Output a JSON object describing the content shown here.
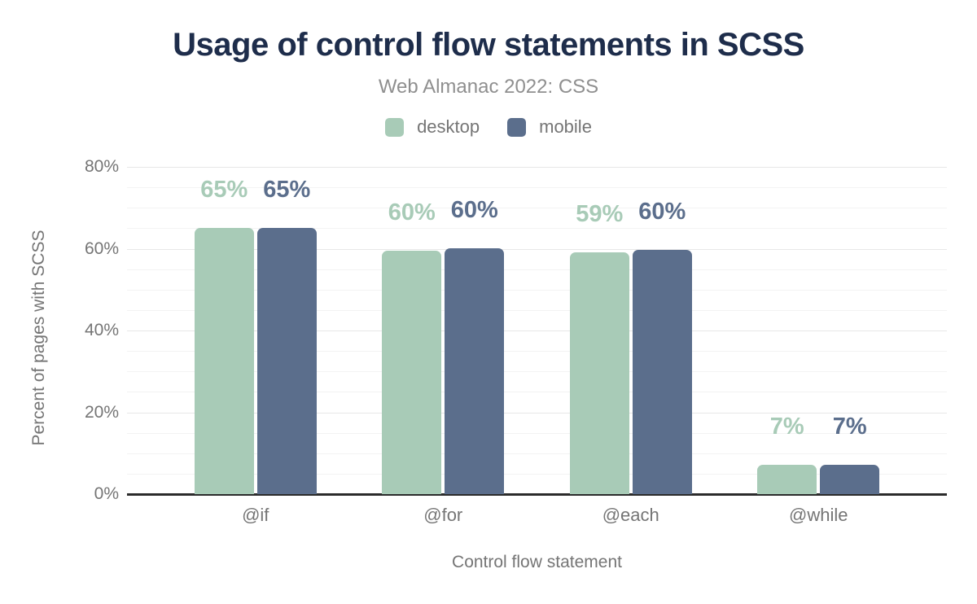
{
  "title": "Usage of control flow statements in SCSS",
  "subtitle": "Web Almanac 2022: CSS",
  "colors": {
    "desktop": "#a8cbb7",
    "mobile": "#5b6e8c",
    "title_text": "#1e2d4b",
    "subtitle_text": "#8f8f8f",
    "axis_text": "#757575",
    "grid_major": "#e7e7e7",
    "grid_minor": "#f3f3f3",
    "axis_line": "#2b2b2b",
    "background": "#ffffff"
  },
  "chart_data": {
    "type": "bar",
    "categories": [
      "@if",
      "@for",
      "@each",
      "@while"
    ],
    "series": [
      {
        "name": "desktop",
        "color": "#a8cbb7",
        "values": [
          65,
          59.6,
          59.1,
          7.1
        ],
        "labels": [
          "65%",
          "60%",
          "59%",
          "7%"
        ]
      },
      {
        "name": "mobile",
        "color": "#5b6e8c",
        "values": [
          65.1,
          60.1,
          59.7,
          7.2
        ],
        "labels": [
          "65%",
          "60%",
          "60%",
          "7%"
        ]
      }
    ],
    "xlabel": "Control flow statement",
    "ylabel": "Percent of pages with SCSS",
    "ylim": [
      0,
      80
    ],
    "yticks": [
      0,
      20,
      40,
      60,
      80
    ],
    "ytick_labels": [
      "0%",
      "20%",
      "40%",
      "60%",
      "80%"
    ],
    "minor_tick_step": 5,
    "grid": true,
    "legend_position": "top"
  }
}
